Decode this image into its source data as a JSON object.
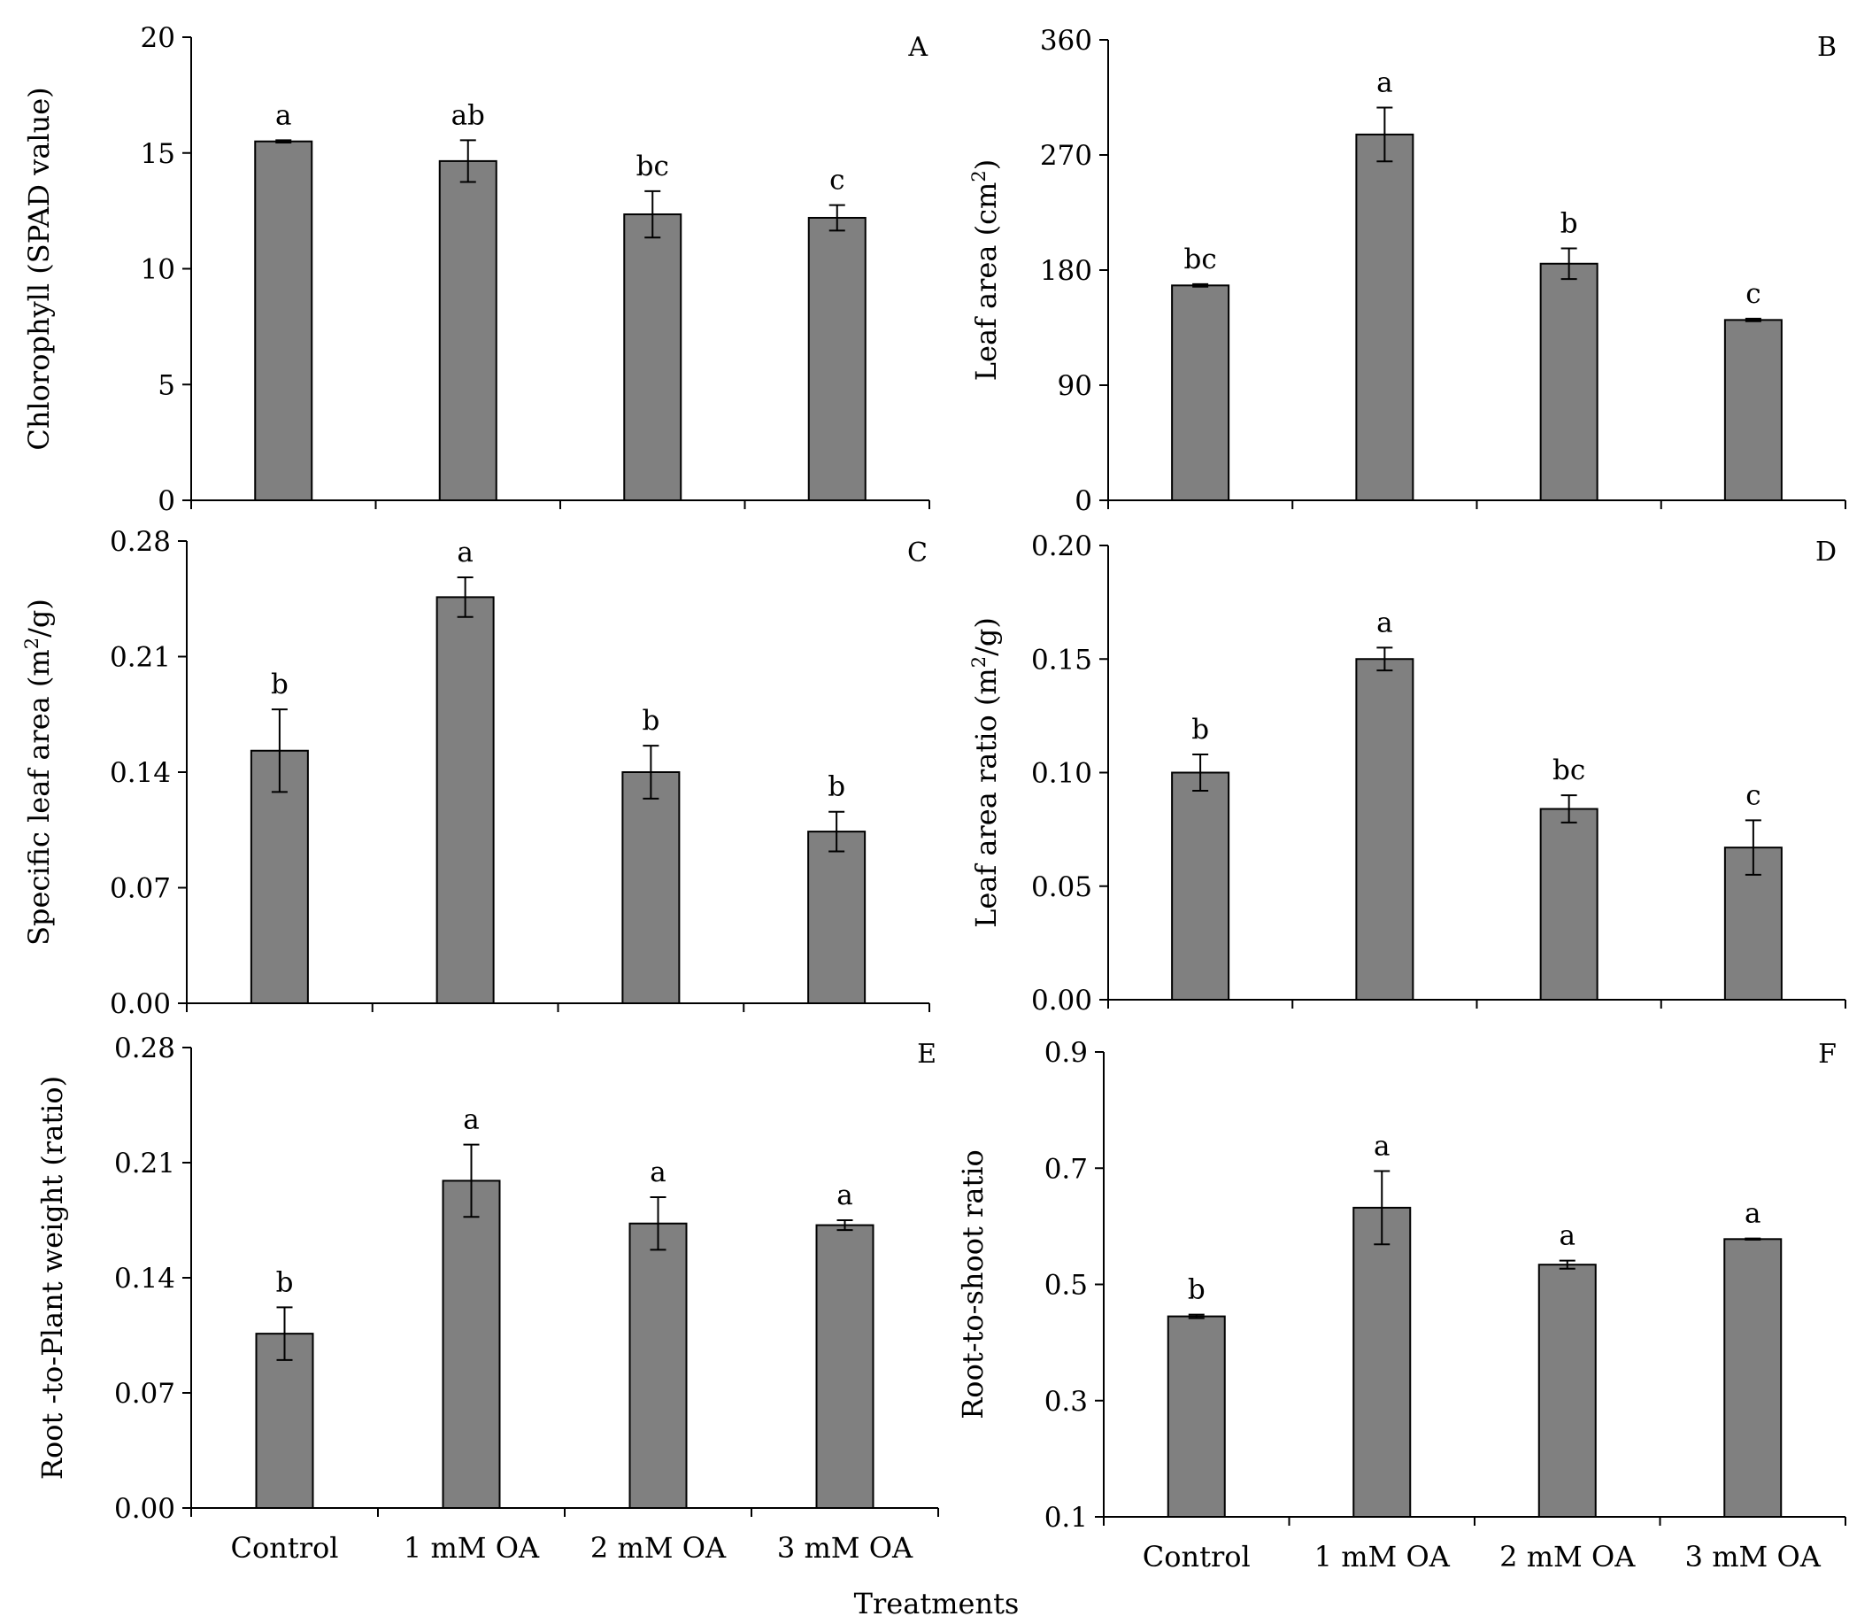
{
  "figure": {
    "x_axis_title": "Treatments"
  },
  "chart_data": [
    {
      "type": "bar",
      "panel": "A",
      "ylabel": "Chlorophyll (SPAD value)",
      "ylim": [
        0,
        20
      ],
      "yticks": [
        0,
        5,
        10,
        15,
        20
      ],
      "tick_labels": [
        "0",
        "5",
        "10",
        "15",
        "20"
      ],
      "categories": [
        "Control",
        "1 mM OA",
        "2 mM OA",
        "3 mM OA"
      ],
      "show_categories": false,
      "values": [
        15.5,
        14.65,
        12.35,
        12.2
      ],
      "errors": [
        0.05,
        0.9,
        1.0,
        0.55
      ],
      "significance": [
        "a",
        "ab",
        "bc",
        "c"
      ]
    },
    {
      "type": "bar",
      "panel": "B",
      "ylabel": "Leaf area (cm²)",
      "ylim": [
        0,
        360
      ],
      "yticks": [
        0,
        90,
        180,
        270,
        360
      ],
      "tick_labels": [
        "0",
        "90",
        "180",
        "270",
        "360"
      ],
      "categories": [
        "Control",
        "1 mM OA",
        "2 mM OA",
        "3 mM OA"
      ],
      "show_categories": false,
      "values": [
        168,
        286,
        185,
        141
      ],
      "errors": [
        1,
        21,
        12,
        1
      ],
      "significance": [
        "bc",
        "a",
        "b",
        "c"
      ]
    },
    {
      "type": "bar",
      "panel": "C",
      "ylabel": "Specific leaf area (m²/g)",
      "ylim": [
        0,
        0.28
      ],
      "yticks": [
        0,
        0.07,
        0.14,
        0.21,
        0.28
      ],
      "tick_labels": [
        "0.00",
        "0.07",
        "0.14",
        "0.21",
        "0.28"
      ],
      "categories": [
        "Control",
        "1 mM OA",
        "2 mM OA",
        "3 mM OA"
      ],
      "show_categories": false,
      "values": [
        0.153,
        0.246,
        0.14,
        0.104
      ],
      "errors": [
        0.025,
        0.012,
        0.016,
        0.012
      ],
      "significance": [
        "b",
        "a",
        "b",
        "b"
      ]
    },
    {
      "type": "bar",
      "panel": "D",
      "ylabel": "Leaf area ratio (m²/g)",
      "ylim": [
        0,
        0.2
      ],
      "yticks": [
        0,
        0.05,
        0.1,
        0.15,
        0.2
      ],
      "tick_labels": [
        "0.00",
        "0.05",
        "0.10",
        "0.15",
        "0.20"
      ],
      "categories": [
        "Control",
        "1 mM OA",
        "2 mM OA",
        "3 mM OA"
      ],
      "show_categories": false,
      "values": [
        0.1,
        0.15,
        0.084,
        0.067
      ],
      "errors": [
        0.008,
        0.005,
        0.006,
        0.012
      ],
      "significance": [
        "b",
        "a",
        "bc",
        "c"
      ]
    },
    {
      "type": "bar",
      "panel": "E",
      "ylabel": "Root -to-Plant weight (ratio)",
      "ylim": [
        0,
        0.28
      ],
      "yticks": [
        0,
        0.07,
        0.14,
        0.21,
        0.28
      ],
      "tick_labels": [
        "0.00",
        "0.07",
        "0.14",
        "0.21",
        "0.28"
      ],
      "categories": [
        "Control",
        "1 mM OA",
        "2 mM OA",
        "3 mM OA"
      ],
      "show_categories": true,
      "values": [
        0.106,
        0.199,
        0.173,
        0.172
      ],
      "errors": [
        0.016,
        0.022,
        0.016,
        0.003
      ],
      "significance": [
        "b",
        "a",
        "a",
        "a"
      ]
    },
    {
      "type": "bar",
      "panel": "F",
      "ylabel": "Root-to-shoot ratio",
      "ylim": [
        0.1,
        0.9
      ],
      "yticks": [
        0.1,
        0.3,
        0.5,
        0.7,
        0.9
      ],
      "tick_labels": [
        "0.1",
        "0.3",
        "0.5",
        "0.7",
        "0.9"
      ],
      "categories": [
        "Control",
        "1 mM OA",
        "2 mM OA",
        "3 mM OA"
      ],
      "show_categories": true,
      "values": [
        0.445,
        0.632,
        0.534,
        0.578
      ],
      "errors": [
        0.003,
        0.063,
        0.007,
        0.001
      ],
      "significance": [
        "b",
        "a",
        "a",
        "a"
      ]
    }
  ],
  "colors": {
    "bar_fill": "#808080",
    "bar_stroke": "#000000",
    "axis": "#000000"
  }
}
